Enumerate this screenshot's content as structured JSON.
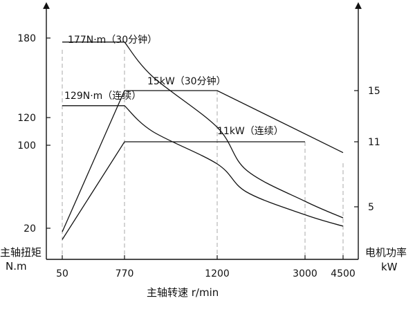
{
  "chart_data": {
    "type": "line",
    "title": "",
    "xlabel": "主轴转速 r/min",
    "ylabel_left": [
      "主轴扭矩",
      "N.m"
    ],
    "ylabel_right": [
      "电机功率",
      "kW"
    ],
    "x_ticks": [
      "50",
      "770",
      "1200",
      "3000",
      "4500"
    ],
    "y_left_ticks": [
      20,
      100,
      120,
      180
    ],
    "y_right_ticks": [
      5,
      11,
      15
    ],
    "x_scale": "piecewise (ticks not evenly spaced in value)",
    "y_scale": "piecewise (ticks not evenly spaced in value)",
    "grid": "dashed vertical guides at 50, 770, 1200, 3000, 4500",
    "series": [
      {
        "label": "177N·m（30分钟）",
        "axis": "left",
        "points": [
          [
            50,
            177
          ],
          [
            770,
            177
          ],
          [
            900,
            151
          ],
          [
            1200,
            113
          ],
          [
            1800,
            76
          ],
          [
            3000,
            46
          ],
          [
            4500,
            30
          ]
        ]
      },
      {
        "label": "129N·m（连续）",
        "axis": "left",
        "points": [
          [
            50,
            129
          ],
          [
            770,
            129
          ],
          [
            900,
            110
          ],
          [
            1200,
            82
          ],
          [
            1800,
            55
          ],
          [
            3000,
            33
          ],
          [
            4500,
            22
          ]
        ]
      },
      {
        "label": "15kW（30分钟）",
        "axis": "right",
        "points": [
          [
            50,
            2.7
          ],
          [
            770,
            15
          ],
          [
            1200,
            15
          ],
          [
            4500,
            10
          ]
        ]
      },
      {
        "label": "11kW（连续）",
        "axis": "right",
        "points": [
          [
            50,
            2.0
          ],
          [
            770,
            11
          ],
          [
            3000,
            11
          ]
        ]
      }
    ]
  }
}
